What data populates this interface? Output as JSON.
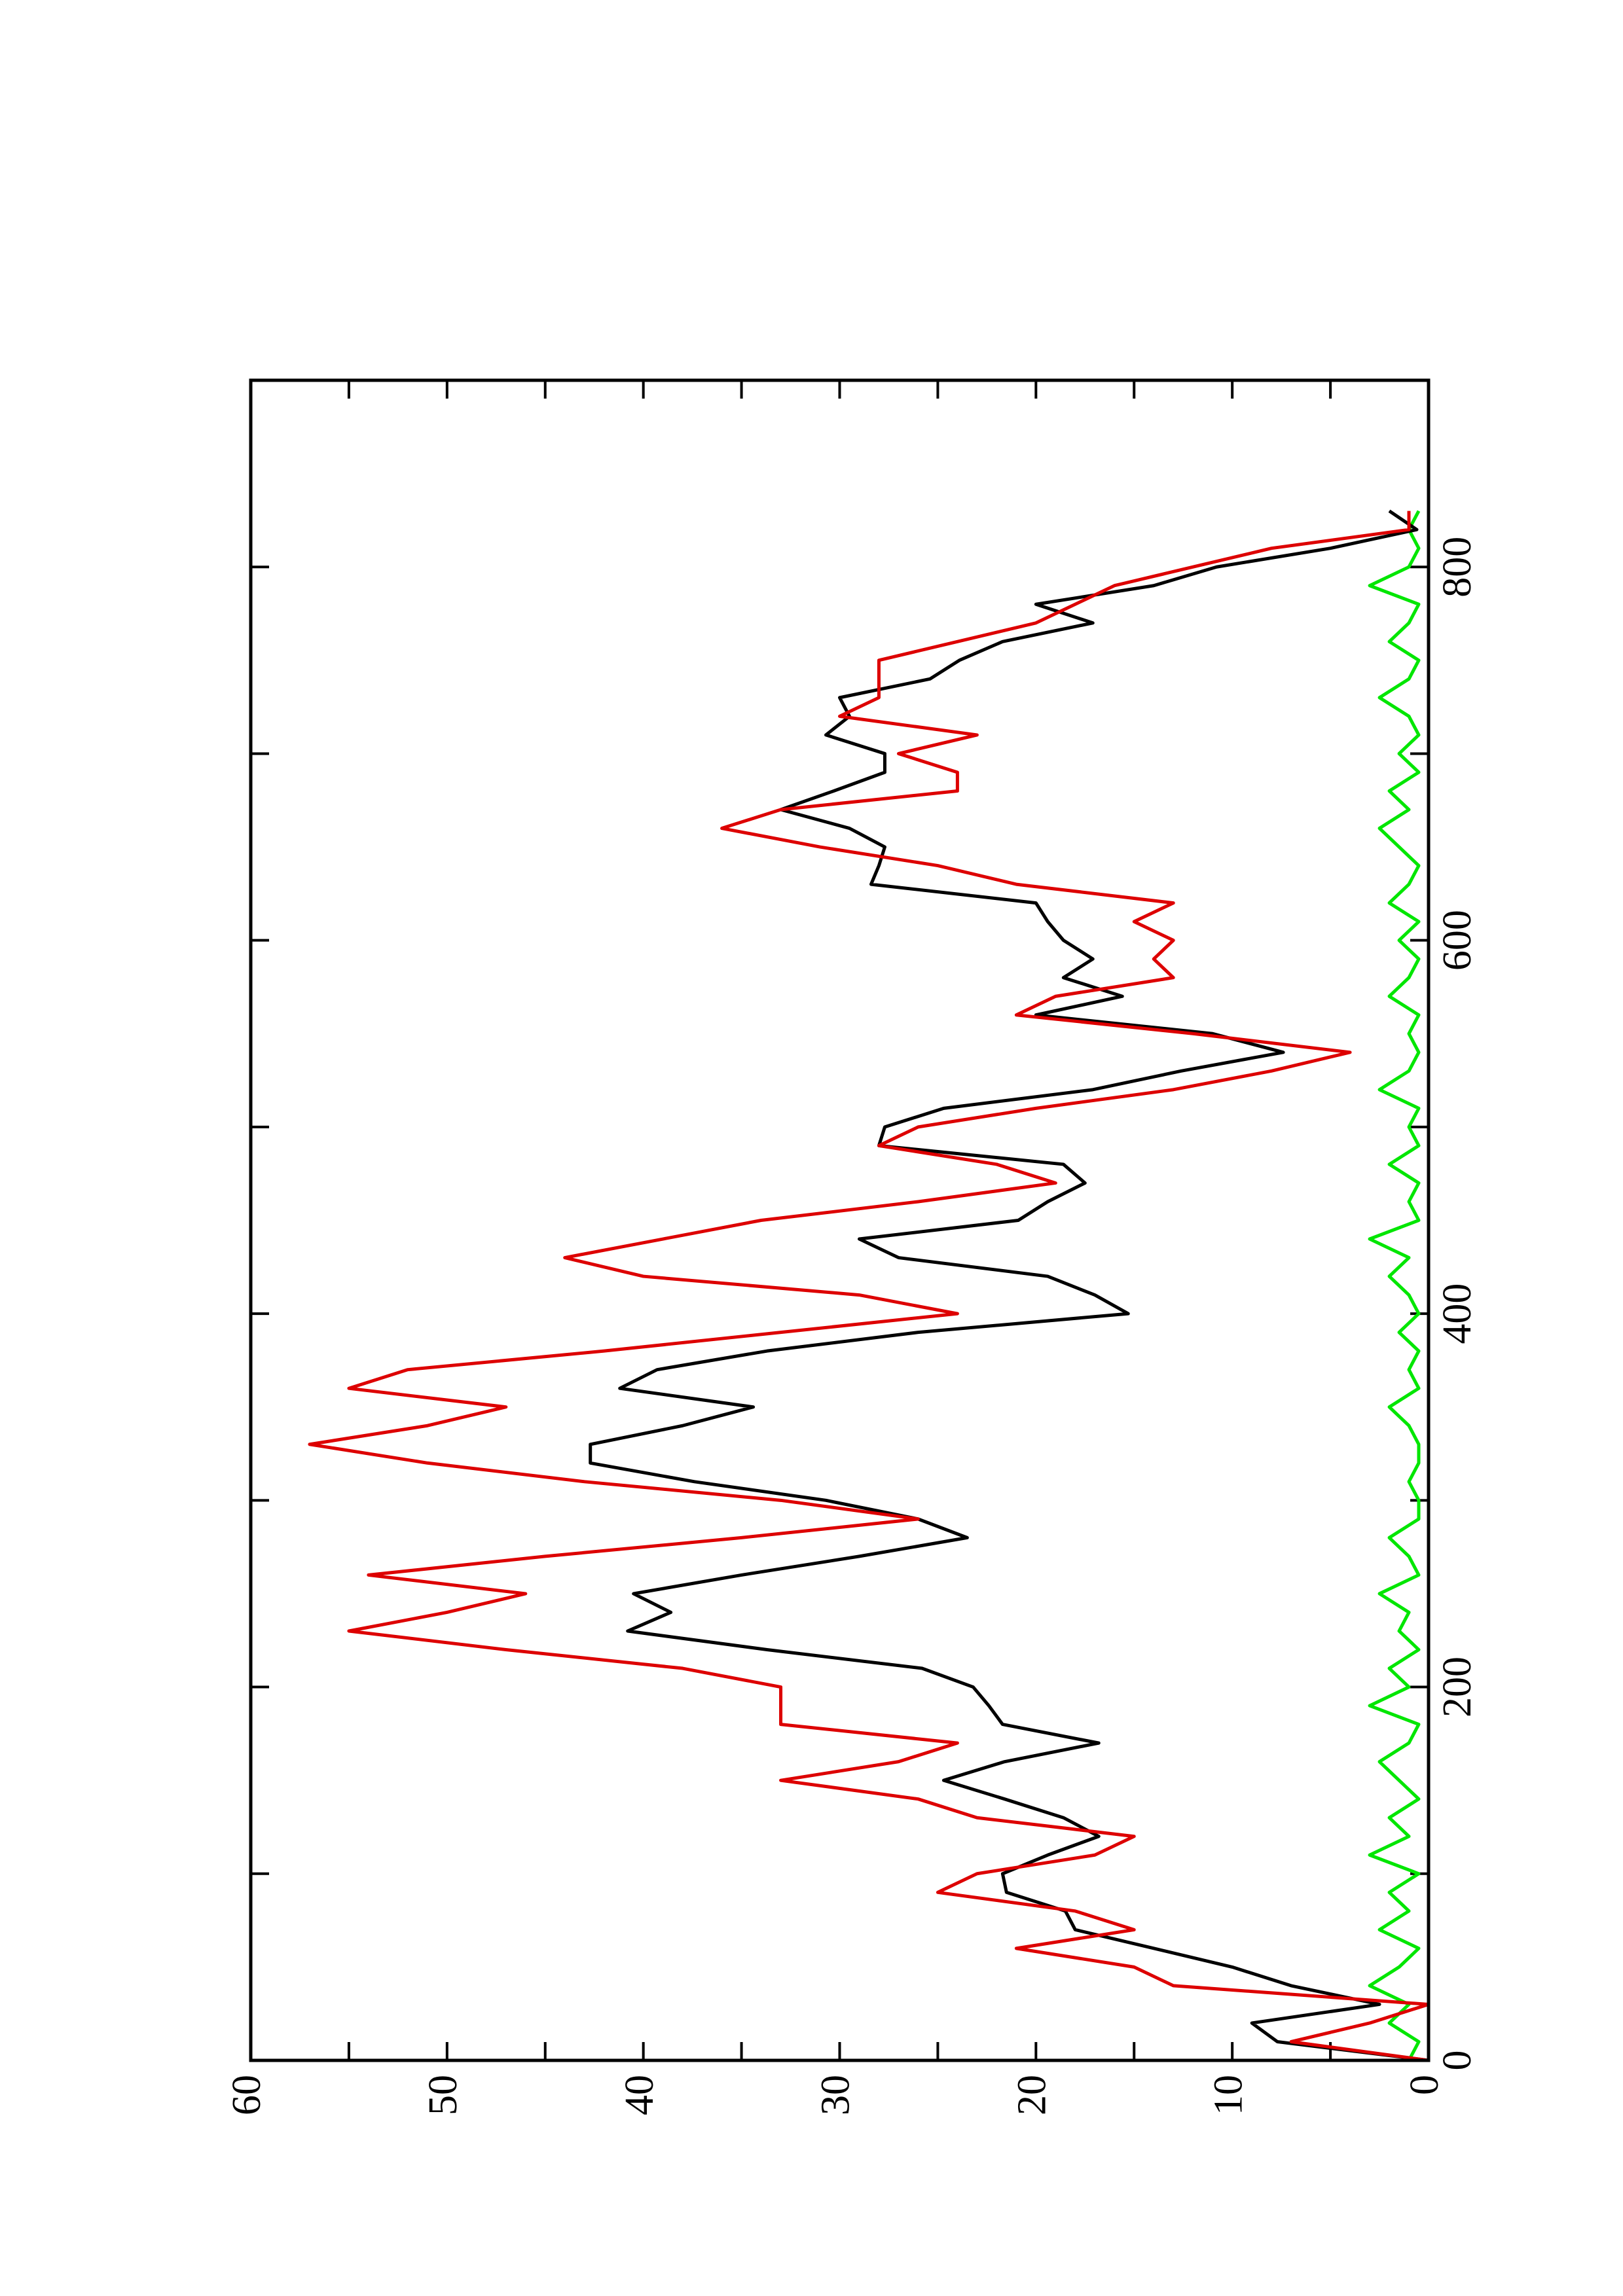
{
  "chart_data": {
    "type": "line",
    "x": [
      0,
      10,
      20,
      30,
      40,
      50,
      60,
      70,
      80,
      90,
      100,
      110,
      120,
      130,
      140,
      150,
      160,
      170,
      180,
      190,
      200,
      210,
      220,
      230,
      240,
      250,
      260,
      270,
      280,
      290,
      300,
      310,
      320,
      330,
      340,
      350,
      360,
      370,
      380,
      390,
      400,
      410,
      420,
      430,
      440,
      450,
      460,
      470,
      480,
      490,
      500,
      510,
      520,
      530,
      540,
      550,
      560,
      570,
      580,
      590,
      600,
      610,
      620,
      630,
      640,
      650,
      660,
      670,
      680,
      690,
      700,
      710,
      720,
      730,
      740,
      750,
      760,
      770,
      780,
      790,
      800,
      810,
      820,
      830
    ],
    "series": [
      {
        "color": "#00e600",
        "values": [
          1,
          0.5,
          2,
          1,
          3,
          1.5,
          0.5,
          2.5,
          1,
          2,
          0.5,
          3,
          1,
          2,
          0.5,
          1.5,
          2.5,
          1,
          0.5,
          3,
          1,
          2,
          0.5,
          1.5,
          1,
          2.5,
          0.5,
          1,
          2,
          0.5,
          0.5,
          1,
          0.5,
          0.5,
          1,
          2,
          0.5,
          1,
          0.5,
          1.5,
          0.5,
          1,
          2,
          1,
          3,
          0.5,
          1,
          0.5,
          2,
          0.5,
          1,
          0.5,
          2.5,
          1,
          0.5,
          1,
          0.5,
          2,
          1,
          0.5,
          1.5,
          0.5,
          2,
          1,
          0.5,
          1.5,
          2.5,
          1,
          2,
          0.5,
          1.5,
          0.5,
          1,
          2.5,
          1,
          0.5,
          2,
          1,
          0.5,
          3,
          1,
          0.5,
          1,
          0.5
        ]
      },
      {
        "color": "#000000",
        "values": [
          0,
          7.7,
          9,
          2.5,
          7,
          10,
          14,
          18,
          18.5,
          21.5,
          21.7,
          19.4,
          16.8,
          18.6,
          21.6,
          24.7,
          21.6,
          16.8,
          21.7,
          22.4,
          23.2,
          25.8,
          33.7,
          40.8,
          38.6,
          40.5,
          35,
          29,
          23.5,
          26,
          30.7,
          37.4,
          42.7,
          42.7,
          38,
          34.4,
          41.2,
          39.3,
          33.7,
          26,
          15.3,
          17,
          19.4,
          27,
          29,
          20.9,
          19.4,
          17.5,
          18.6,
          28,
          27.7,
          24.7,
          17.1,
          12.6,
          7.4,
          11,
          20,
          15.6,
          18.6,
          17.1,
          18.6,
          19.4,
          20,
          28.4,
          28,
          27.7,
          29.5,
          33,
          30.3,
          27.7,
          27.7,
          30.7,
          29.5,
          30,
          25.4,
          23.9,
          21.7,
          17.1,
          20,
          14,
          10.8,
          5,
          0.6,
          2
        ]
      },
      {
        "color": "#dd0000",
        "values": [
          0,
          7,
          3,
          0,
          13,
          15,
          21,
          15,
          18,
          25,
          23,
          17,
          15,
          23,
          26,
          33,
          27,
          24,
          33,
          33,
          33,
          38,
          47,
          55,
          50,
          46,
          54,
          45,
          35,
          26,
          33,
          43,
          51,
          57,
          51,
          47,
          55,
          52,
          42,
          33,
          24,
          29,
          40,
          44,
          39,
          34,
          26,
          19,
          22,
          28,
          26,
          20,
          13,
          8,
          4,
          12,
          21,
          19,
          13,
          14,
          13,
          15,
          13,
          21,
          25,
          31,
          36,
          33,
          24,
          24,
          27,
          23,
          30,
          28,
          28,
          28,
          24,
          20,
          18,
          16,
          12,
          8,
          1,
          1
        ]
      }
    ],
    "xlim": [
      0,
      900
    ],
    "xticks": [
      0,
      200,
      400,
      600,
      800
    ],
    "xminorticks": [
      100,
      300,
      500,
      700
    ],
    "ylim": [
      0,
      60
    ],
    "yticks": [
      0,
      10,
      20,
      30,
      40,
      50,
      60
    ],
    "yminorticks": [
      5,
      15,
      25,
      35,
      45,
      55
    ],
    "rotated": true
  }
}
